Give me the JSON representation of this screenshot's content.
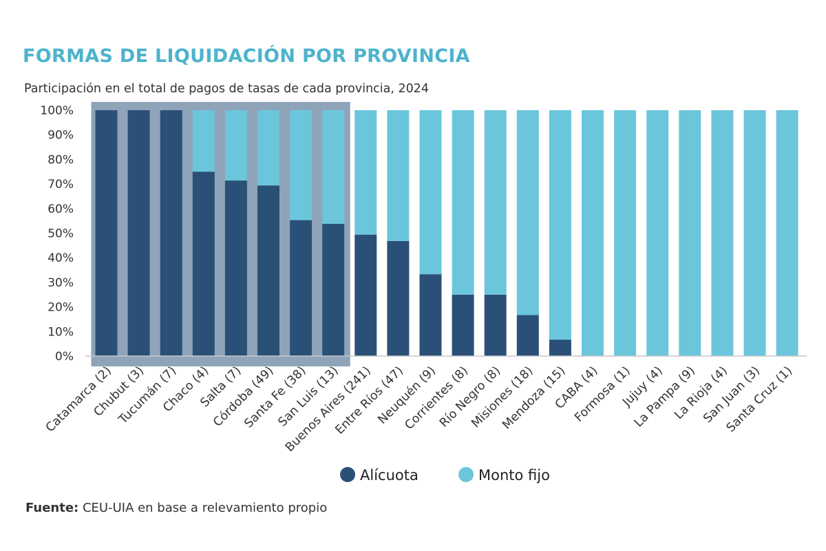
{
  "chart_data": {
    "type": "bar",
    "stacked": true,
    "title": "FORMAS DE LIQUIDACIÓN POR PROVINCIA",
    "subtitle": "Participación en el total de pagos de tasas de cada provincia, 2024",
    "xlabel": "",
    "ylabel": "",
    "ylim": [
      0,
      100
    ],
    "y_ticks": [
      "0%",
      "10%",
      "20%",
      "30%",
      "40%",
      "50%",
      "60%",
      "70%",
      "80%",
      "90%",
      "100%"
    ],
    "categories": [
      "Catamarca (2)",
      "Chubut (3)",
      "Tucumán (7)",
      "Chaco (4)",
      "Salta (7)",
      "Córdoba (49)",
      "Santa Fe (38)",
      "San Luis (13)",
      "Buenos Aires (241)",
      "Entre Ríos (47)",
      "Neuquén (9)",
      "Corrientes (8)",
      "Río Negro (8)",
      "Misiones (18)",
      "Mendoza (15)",
      "CABA (4)",
      "Formosa (1)",
      "Jujuy (4)",
      "La Pampa (9)",
      "La Rioja (4)",
      "San Juan (3)",
      "Santa Cruz (1)"
    ],
    "highlighted_categories": [
      "Catamarca (2)",
      "Chubut (3)",
      "Tucumán (7)",
      "Chaco (4)",
      "Salta (7)",
      "Córdoba (49)",
      "Santa Fe (38)",
      "San Luis (13)"
    ],
    "series": [
      {
        "name": "Alícuota",
        "color": "#2b5077",
        "values": [
          100,
          100,
          100,
          75,
          71.4,
          69.4,
          55.3,
          53.8,
          49.4,
          46.8,
          33.3,
          25,
          25,
          16.7,
          6.7,
          0,
          0,
          0,
          0,
          0,
          0,
          0
        ]
      },
      {
        "name": "Monto fijo",
        "color": "#6bc6dc",
        "values": [
          0,
          0,
          0,
          25,
          28.6,
          30.6,
          44.7,
          46.2,
          50.6,
          53.2,
          66.7,
          75,
          75,
          83.3,
          93.3,
          100,
          100,
          100,
          100,
          100,
          100,
          100
        ]
      }
    ],
    "legend_position": "bottom",
    "grid": false,
    "highlight_color": "#8fa4b9"
  },
  "source": {
    "label": "Fuente:",
    "text": " CEU-UIA en base a relevamiento propio"
  }
}
